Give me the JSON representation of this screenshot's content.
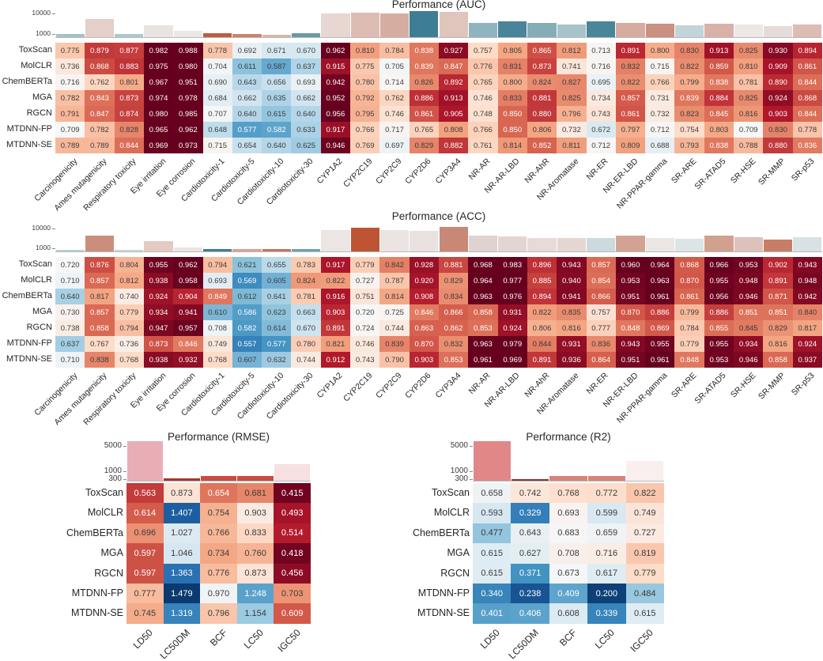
{
  "palette": {
    "rdbu_r": [
      "#053061",
      "#2166ac",
      "#4393c3",
      "#92c5de",
      "#d1e5f0",
      "#f7f7f7",
      "#fddbc7",
      "#f4a582",
      "#d6604d",
      "#b2182b",
      "#67001f"
    ],
    "dark_text": "#3b3b3b",
    "light_text": "#ffffff"
  },
  "chart_data": [
    {
      "id": "auc",
      "type": "heatmap",
      "title": "Performance (AUC)",
      "rows": [
        "ToxScan",
        "MolCLR",
        "ChemBERTa",
        "MGA",
        "RGCN",
        "MTDNN-FP",
        "MTDNN-SE"
      ],
      "columns": [
        "Carcinogenicity",
        "Ames mutagenicity",
        "Respiratory toxicity",
        "Eye irritation",
        "Eye corrosion",
        "Cardiotoxicity-1",
        "Cardiotoxicity-5",
        "Cardiotoxicity-10",
        "Cardiotoxicity-30",
        "CYP1A2",
        "CYP2C19",
        "CYP2C9",
        "CYP2D6",
        "CYP3A4",
        "NR-AR",
        "NR-AR-LBD",
        "NR-AhR",
        "NR-Aromatase",
        "NR-ER",
        "NR-ER-LBD",
        "NR-PPAR-gamma",
        "SR-ARE",
        "SR-ATAD5",
        "SR-HSE",
        "SR-MMP",
        "SR-p53"
      ],
      "values": [
        [
          0.775,
          0.879,
          0.877,
          0.982,
          0.988,
          0.778,
          0.692,
          0.671,
          0.67,
          0.962,
          0.81,
          0.784,
          0.838,
          0.927,
          0.757,
          0.805,
          0.865,
          0.812,
          0.713,
          0.891,
          0.8,
          0.83,
          0.913,
          0.825,
          0.93,
          0.894
        ],
        [
          0.736,
          0.868,
          0.883,
          0.975,
          0.98,
          0.704,
          0.611,
          0.587,
          0.637,
          0.915,
          0.775,
          0.705,
          0.839,
          0.847,
          0.776,
          0.831,
          0.873,
          0.741,
          0.716,
          0.832,
          0.715,
          0.822,
          0.859,
          0.81,
          0.909,
          0.861
        ],
        [
          0.716,
          0.762,
          0.801,
          0.967,
          0.951,
          0.69,
          0.643,
          0.656,
          0.693,
          0.942,
          0.78,
          0.714,
          0.826,
          0.892,
          0.765,
          0.8,
          0.824,
          0.827,
          0.695,
          0.822,
          0.766,
          0.799,
          0.838,
          0.781,
          0.89,
          0.844
        ],
        [
          0.782,
          0.843,
          0.873,
          0.974,
          0.978,
          0.684,
          0.662,
          0.635,
          0.662,
          0.952,
          0.792,
          0.762,
          0.886,
          0.913,
          0.746,
          0.833,
          0.881,
          0.825,
          0.734,
          0.857,
          0.731,
          0.839,
          0.884,
          0.825,
          0.924,
          0.868
        ],
        [
          0.791,
          0.847,
          0.874,
          0.98,
          0.985,
          0.707,
          0.64,
          0.615,
          0.64,
          0.956,
          0.795,
          0.746,
          0.861,
          0.905,
          0.748,
          0.85,
          0.88,
          0.796,
          0.743,
          0.861,
          0.732,
          0.823,
          0.845,
          0.816,
          0.903,
          0.844
        ],
        [
          0.709,
          0.782,
          0.828,
          0.965,
          0.962,
          0.648,
          0.577,
          0.582,
          0.633,
          0.917,
          0.766,
          0.717,
          0.765,
          0.808,
          0.766,
          0.85,
          0.806,
          0.732,
          0.672,
          0.797,
          0.712,
          0.754,
          0.803,
          0.709,
          0.83,
          0.778
        ],
        [
          0.789,
          0.789,
          0.844,
          0.969,
          0.973,
          0.715,
          0.654,
          0.64,
          0.625,
          0.946,
          0.769,
          0.697,
          0.829,
          0.882,
          0.761,
          0.814,
          0.852,
          0.811,
          0.712,
          0.809,
          0.688,
          0.793,
          0.838,
          0.788,
          0.88,
          0.836
        ]
      ],
      "color_scale": {
        "center": 0.71,
        "half_range": 0.24,
        "higher_is_red": true
      },
      "size_axis_ticks": [
        "10000",
        "1000"
      ],
      "size_bars": {
        "fractions": [
          0.11,
          0.63,
          0.11,
          0.4,
          0.21,
          0.14,
          0.11,
          0.09,
          0.14,
          0.8,
          0.83,
          0.8,
          0.89,
          0.86,
          0.49,
          0.54,
          0.49,
          0.43,
          0.54,
          0.49,
          0.46,
          0.4,
          0.46,
          0.43,
          0.37,
          0.43
        ],
        "colors": [
          "#a2c2c8",
          "#e4cfc9",
          "#abc8cd",
          "#e9e4e2",
          "#ebe7e5",
          "#bf5a40",
          "#cb8270",
          "#dcb4a8",
          "#669aaa",
          "#e7d6d1",
          "#dcbcb3",
          "#d6ada1",
          "#3d7e95",
          "#e0c5bc",
          "#8fb4bd",
          "#49849a",
          "#84adb8",
          "#a6c3c9",
          "#4a8599",
          "#d6aba0",
          "#ca9081",
          "#c2d4d8",
          "#d8b2a8",
          "#ebe8e6",
          "#e5dcd9",
          "#dcbcb3"
        ]
      }
    },
    {
      "id": "acc",
      "type": "heatmap",
      "title": "Performance (ACC)",
      "rows": [
        "ToxScan",
        "MolCLR",
        "ChemBERTa",
        "MGA",
        "RGCN",
        "MTDNN-FP",
        "MTDNN-SE"
      ],
      "columns": [
        "Carcinogenicity",
        "Ames mutagenicity",
        "Respiratory toxicity",
        "Eye irritation",
        "Eye corrosion",
        "Cardiotoxicity-1",
        "Cardiotoxicity-5",
        "Cardiotoxicity-10",
        "Cardiotoxicity-30",
        "CYP1A2",
        "CYP2C19",
        "CYP2C9",
        "CYP2D6",
        "CYP3A4",
        "NR-AR",
        "NR-AR-LBD",
        "NR-AhR",
        "NR-Aromatase",
        "NR-ER",
        "NR-ER-LBD",
        "NR-PPAR-gamma",
        "SR-ARE",
        "SR-ATAD5",
        "SR-HSE",
        "SR-MMP",
        "SR-p53"
      ],
      "values": [
        [
          0.72,
          0.876,
          0.804,
          0.955,
          0.962,
          0.794,
          0.621,
          0.655,
          0.783,
          0.917,
          0.779,
          0.842,
          0.928,
          0.881,
          0.968,
          0.983,
          0.896,
          0.943,
          0.857,
          0.96,
          0.964,
          0.868,
          0.966,
          0.953,
          0.902,
          0.943
        ],
        [
          0.71,
          0.857,
          0.812,
          0.938,
          0.958,
          0.693,
          0.569,
          0.605,
          0.824,
          0.822,
          0.727,
          0.787,
          0.92,
          0.829,
          0.964,
          0.977,
          0.885,
          0.94,
          0.854,
          0.953,
          0.963,
          0.87,
          0.955,
          0.948,
          0.891,
          0.948
        ],
        [
          0.64,
          0.817,
          0.74,
          0.924,
          0.904,
          0.849,
          0.612,
          0.641,
          0.781,
          0.916,
          0.751,
          0.814,
          0.908,
          0.834,
          0.963,
          0.976,
          0.894,
          0.941,
          0.866,
          0.951,
          0.961,
          0.861,
          0.956,
          0.946,
          0.871,
          0.942
        ],
        [
          0.73,
          0.857,
          0.779,
          0.934,
          0.941,
          0.61,
          0.586,
          0.623,
          0.663,
          0.903,
          0.72,
          0.725,
          0.846,
          0.866,
          0.858,
          0.931,
          0.822,
          0.835,
          0.757,
          0.87,
          0.886,
          0.799,
          0.886,
          0.851,
          0.851,
          0.84
        ],
        [
          0.738,
          0.858,
          0.794,
          0.947,
          0.957,
          0.708,
          0.582,
          0.614,
          0.67,
          0.891,
          0.724,
          0.744,
          0.863,
          0.862,
          0.853,
          0.924,
          0.806,
          0.816,
          0.777,
          0.848,
          0.869,
          0.784,
          0.855,
          0.845,
          0.829,
          0.817
        ],
        [
          0.637,
          0.767,
          0.736,
          0.873,
          0.846,
          0.749,
          0.557,
          0.577,
          0.78,
          0.821,
          0.746,
          0.839,
          0.87,
          0.832,
          0.963,
          0.979,
          0.844,
          0.931,
          0.836,
          0.943,
          0.955,
          0.779,
          0.955,
          0.934,
          0.816,
          0.924
        ],
        [
          0.71,
          0.838,
          0.768,
          0.938,
          0.932,
          0.768,
          0.607,
          0.632,
          0.744,
          0.912,
          0.743,
          0.79,
          0.903,
          0.853,
          0.961,
          0.969,
          0.891,
          0.936,
          0.864,
          0.951,
          0.961,
          0.848,
          0.953,
          0.946,
          0.858,
          0.937
        ]
      ],
      "color_scale": {
        "center": 0.72,
        "half_range": 0.24,
        "higher_is_red": true
      },
      "size_axis_ticks": [
        "10000",
        "1000"
      ],
      "size_bars": {
        "fractions": [
          0.06,
          0.57,
          0.06,
          0.37,
          0.14,
          0.09,
          0.09,
          0.09,
          0.09,
          0.77,
          0.86,
          0.77,
          0.74,
          0.9,
          0.57,
          0.54,
          0.49,
          0.49,
          0.49,
          0.57,
          0.49,
          0.46,
          0.57,
          0.51,
          0.43,
          0.51
        ],
        "colors": [
          "#b9d0d4",
          "#cb8e7d",
          "#c6d8da",
          "#e5cac2",
          "#ece4e2",
          "#3d7e95",
          "#d8a296",
          "#c5745f",
          "#6ba0ae",
          "#ebe6e4",
          "#bf5434",
          "#ebe4e2",
          "#e9e2e0",
          "#c98875",
          "#ded3d1",
          "#e2d5d2",
          "#e6dbd8",
          "#e5d6d2",
          "#ccdade",
          "#d3a294",
          "#ebe6e4",
          "#dce4e6",
          "#d2a08f",
          "#dcc2bb",
          "#c87e66",
          "#d8e1e3"
        ]
      }
    },
    {
      "id": "rmse",
      "type": "heatmap",
      "title": "Performance (RMSE)",
      "rows": [
        "ToxScan",
        "MolCLR",
        "ChemBERTa",
        "MGA",
        "RGCN",
        "MTDNN-FP",
        "MTDNN-SE"
      ],
      "columns": [
        "LD50",
        "LC50DM",
        "BCF",
        "LC50",
        "IGC50"
      ],
      "values": [
        [
          0.563,
          0.873,
          0.654,
          0.681,
          0.415
        ],
        [
          0.614,
          1.407,
          0.754,
          0.903,
          0.493
        ],
        [
          0.696,
          1.027,
          0.766,
          0.833,
          0.514
        ],
        [
          0.597,
          1.046,
          0.734,
          0.76,
          0.418
        ],
        [
          0.597,
          1.363,
          0.776,
          0.873,
          0.456
        ],
        [
          0.777,
          1.479,
          0.97,
          1.248,
          0.703
        ],
        [
          0.745,
          1.319,
          0.796,
          1.154,
          0.609
        ]
      ],
      "color_scale": {
        "center": 0.95,
        "half_range": 0.55,
        "higher_is_red": false
      },
      "size_axis_ticks": [
        "5000",
        "1000",
        "300"
      ],
      "size_bars": {
        "fractions": [
          1.0,
          0.06,
          0.12,
          0.12,
          0.42
        ],
        "colors": [
          "#e9adb6",
          "#a8352a",
          "#c94c42",
          "#c94c42",
          "#f6e0e2"
        ]
      }
    },
    {
      "id": "r2",
      "type": "heatmap",
      "title": "Performance (R2)",
      "rows": [
        "ToxScan",
        "MolCLR",
        "ChemBERTa",
        "MGA",
        "RGCN",
        "MTDNN-FP",
        "MTDNN-SE"
      ],
      "columns": [
        "LD50",
        "LC50DM",
        "BCF",
        "LC50",
        "IGC50"
      ],
      "values": [
        [
          0.658,
          0.742,
          0.768,
          0.772,
          0.822
        ],
        [
          0.593,
          0.329,
          0.693,
          0.599,
          0.749
        ],
        [
          0.477,
          0.643,
          0.683,
          0.659,
          0.727
        ],
        [
          0.615,
          0.627,
          0.708,
          0.716,
          0.819
        ],
        [
          0.615,
          0.371,
          0.673,
          0.617,
          0.779
        ],
        [
          0.34,
          0.238,
          0.409,
          0.2,
          0.484
        ],
        [
          0.401,
          0.406,
          0.608,
          0.339,
          0.615
        ]
      ],
      "color_scale": {
        "center": 0.68,
        "half_range": 0.51,
        "higher_is_red": true
      },
      "size_axis_ticks": [
        "5000",
        "1000",
        "300"
      ],
      "size_bars": {
        "fractions": [
          1.0,
          0.05,
          0.12,
          0.12,
          0.5
        ],
        "colors": [
          "#e18787",
          "#9c2e23",
          "#d8837a",
          "#d8837a",
          "#f8efee"
        ]
      }
    }
  ]
}
